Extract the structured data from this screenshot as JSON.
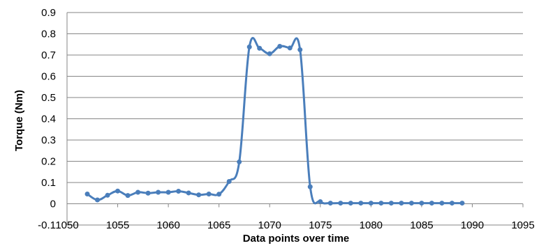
{
  "chart_data": {
    "type": "line",
    "title": "",
    "xlabel": "Data points over time",
    "ylabel": "Torque (Nm)",
    "xlim": [
      1050,
      1095
    ],
    "ylim": [
      -0.1,
      0.9
    ],
    "xticks": [
      1050,
      1055,
      1060,
      1065,
      1070,
      1075,
      1080,
      1085,
      1090,
      1095
    ],
    "yticks": [
      -0.1,
      0,
      0.1,
      0.2,
      0.3,
      0.4,
      0.5,
      0.6,
      0.7,
      0.8,
      0.9
    ],
    "xtick_labels": [
      "1050",
      "1055",
      "1060",
      "1065",
      "1070",
      "1075",
      "1080",
      "1085",
      "1090",
      "1095"
    ],
    "ytick_labels": [
      "-0.1",
      "0",
      "0.1",
      "0.2",
      "0.3",
      "0.4",
      "0.5",
      "0.6",
      "0.7",
      "0.8",
      "0.9"
    ],
    "grid": {
      "horizontal": true,
      "vertical": false
    },
    "legend": "none",
    "line_color": "#4a7ebb",
    "series": [
      {
        "x": [
          1052,
          1053,
          1054,
          1055,
          1056,
          1057,
          1058,
          1059,
          1060,
          1061,
          1062,
          1063,
          1064,
          1065,
          1066,
          1067,
          1068,
          1069,
          1070,
          1071,
          1072,
          1073,
          1074,
          1075,
          1076,
          1077,
          1078,
          1079,
          1080,
          1081,
          1082,
          1083,
          1084,
          1085,
          1086,
          1087,
          1088,
          1089
        ],
        "y": [
          0.046,
          0.018,
          0.04,
          0.06,
          0.039,
          0.054,
          0.05,
          0.054,
          0.054,
          0.059,
          0.051,
          0.042,
          0.046,
          0.045,
          0.105,
          0.197,
          0.738,
          0.732,
          0.706,
          0.741,
          0.733,
          0.725,
          0.08,
          0.01,
          0.003,
          0.003,
          0.003,
          0.003,
          0.003,
          0.003,
          0.003,
          0.003,
          0.003,
          0.003,
          0.003,
          0.003,
          0.003,
          0.003
        ]
      }
    ]
  }
}
